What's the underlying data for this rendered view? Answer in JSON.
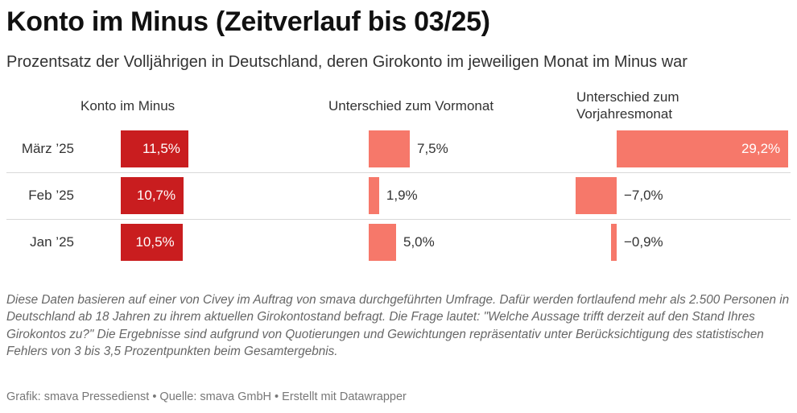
{
  "title": "Konto im Minus (Zeitverlauf bis 03/25)",
  "subtitle": "Prozentsatz der Volljährigen in Deutschland, deren Girokonto im jeweiligen Monat im Minus war",
  "colors": {
    "main_bar": "#c91d1f",
    "diff_bar": "#f6786a"
  },
  "chart_data": {
    "type": "table",
    "columns": [
      "Konto im Minus",
      "Unterschied zum Vormonat",
      "Unterschied zum Vorjahresmonat"
    ],
    "rows": [
      {
        "label": "März ’25",
        "konto": 11.5,
        "konto_label": "11,5%",
        "vormonat": 7.5,
        "vormonat_label": "7,5%",
        "vorjahr": 29.2,
        "vorjahr_label": "29,2%"
      },
      {
        "label": "Feb ’25",
        "konto": 10.7,
        "konto_label": "10,7%",
        "vormonat": 1.9,
        "vormonat_label": "1,9%",
        "vorjahr": -7.0,
        "vorjahr_label": "−7,0%"
      },
      {
        "label": "Jan ’25",
        "konto": 10.5,
        "konto_label": "10,5%",
        "vormonat": 5.0,
        "vormonat_label": "5,0%",
        "vorjahr": -0.9,
        "vorjahr_label": "−0,9%"
      }
    ]
  },
  "note": "Diese Daten basieren auf einer von Civey im Auftrag von smava durchgeführten Umfrage. Dafür werden fortlaufend mehr als 2.500 Personen in Deutschland ab 18 Jahren zu ihrem aktuellen Girokontostand befragt. Die Frage lautet: \"Welche Aussage trifft derzeit auf den Stand Ihres Girokontos zu?\" Die Ergebnisse sind aufgrund von Quotierungen und Gewichtungen repräsentativ unter Berücksichtigung des statistischen Fehlers von 3 bis 3,5 Prozentpunkten beim Gesamtergebnis.",
  "footer": "Grafik: smava Pressedienst • Quelle: smava GmbH • Erstellt mit Datawrapper"
}
